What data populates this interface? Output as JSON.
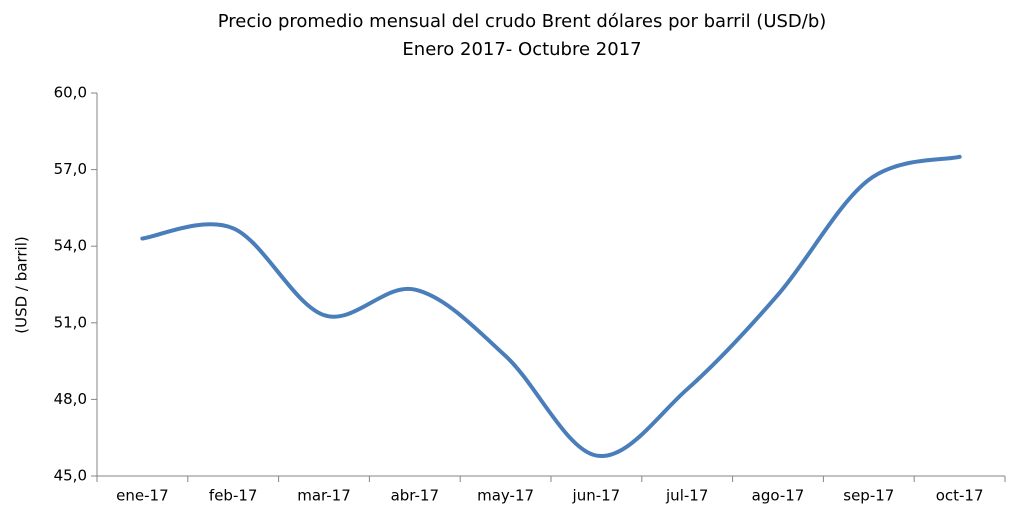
{
  "chart_data": {
    "type": "line",
    "title": "Precio promedio mensual del crudo Brent dólares por barril (USD/b)",
    "subtitle": "Enero 2017- Octubre 2017",
    "y_label": "(USD / barril)",
    "categories": [
      "ene-17",
      "feb-17",
      "mar-17",
      "abr-17",
      "may-17",
      "jun-17",
      "jul-17",
      "ago-17",
      "sep-17",
      "oct-17"
    ],
    "series": [
      {
        "name": "Brent",
        "color": "#4a7ebb",
        "values": [
          54.3,
          54.7,
          51.3,
          52.3,
          49.7,
          45.8,
          48.4,
          52.1,
          56.6,
          57.5
        ]
      }
    ],
    "ylim": [
      45,
      60
    ],
    "yticks": [
      {
        "value": 45,
        "label": "45,0"
      },
      {
        "value": 48,
        "label": "48,0"
      },
      {
        "value": 51,
        "label": "51,0"
      },
      {
        "value": 54,
        "label": "54,0"
      },
      {
        "value": 57,
        "label": "57,0"
      },
      {
        "value": 60,
        "label": "60,0"
      }
    ],
    "grid": false,
    "smooth": true
  }
}
